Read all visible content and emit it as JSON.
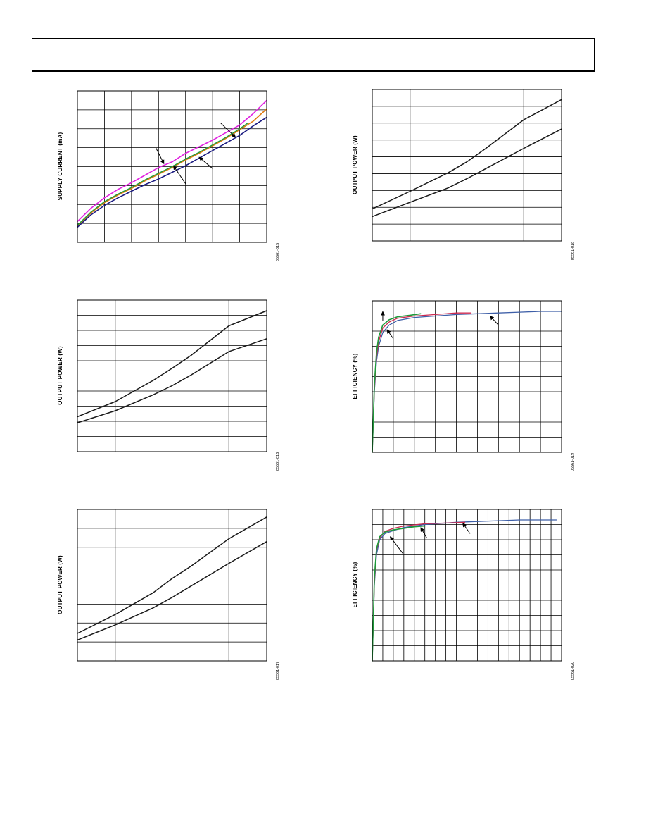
{
  "page": {
    "header": ""
  },
  "charts": [
    {
      "id": "supply-current",
      "type": "line",
      "ylabel": "SUPPLY CURRENT (mA)",
      "fig_id": "05561-015",
      "xlim": [
        0,
        7
      ],
      "ylim": [
        0,
        8
      ],
      "x_gridlines": 7,
      "y_gridlines": 8,
      "grid": true,
      "annotations": [
        {
          "from": [
            5.3,
            6.3
          ],
          "to": [
            5.85,
            5.55
          ]
        },
        {
          "from": [
            2.9,
            5.0
          ],
          "to": [
            3.2,
            4.15
          ]
        },
        {
          "from": [
            4.0,
            3.1
          ],
          "to": [
            3.55,
            4.05
          ]
        },
        {
          "from": [
            5.0,
            3.9
          ],
          "to": [
            4.5,
            4.5
          ]
        }
      ],
      "series": [
        {
          "name": "",
          "color": "#e020e0",
          "width": 1.6,
          "x": [
            0,
            0.5,
            1,
            1.5,
            2,
            2.5,
            3,
            3.5,
            4,
            4.5,
            5,
            5.5,
            6,
            6.5,
            7
          ],
          "y": [
            1.1,
            1.8,
            2.35,
            2.8,
            3.15,
            3.55,
            3.95,
            4.25,
            4.7,
            5.05,
            5.4,
            5.8,
            6.2,
            6.8,
            7.5
          ]
        },
        {
          "name": "",
          "color": "#e07a10",
          "width": 1.6,
          "x": [
            0,
            0.5,
            1,
            1.5,
            2,
            2.5,
            3,
            3.5,
            4,
            4.5,
            5,
            5.5,
            6,
            6.5,
            7
          ],
          "y": [
            0.85,
            1.55,
            2.1,
            2.5,
            2.85,
            3.25,
            3.6,
            3.95,
            4.35,
            4.7,
            5.1,
            5.5,
            5.95,
            6.4,
            7.05
          ]
        },
        {
          "name": "",
          "color": "#1e9a3a",
          "width": 1.4,
          "x": [
            0,
            0.5,
            1,
            1.5,
            2,
            2.5,
            3,
            3.5,
            4,
            4.5,
            5,
            5.5,
            6,
            6.3
          ],
          "y": [
            0.9,
            1.6,
            2.15,
            2.55,
            2.9,
            3.3,
            3.65,
            4.0,
            4.4,
            4.75,
            5.15,
            5.55,
            6.0,
            6.3
          ]
        },
        {
          "name": "",
          "color": "#1a1a80",
          "width": 1.6,
          "x": [
            0,
            0.5,
            1,
            1.5,
            2,
            2.5,
            3,
            3.5,
            4,
            4.5,
            5,
            5.5,
            6,
            6.5,
            7
          ],
          "y": [
            0.8,
            1.45,
            1.95,
            2.35,
            2.7,
            3.05,
            3.35,
            3.7,
            4.05,
            4.45,
            4.85,
            5.25,
            5.65,
            6.15,
            6.6
          ]
        }
      ]
    },
    {
      "id": "output-power-1",
      "type": "line",
      "ylabel": "OUTPUT POWER (W)",
      "fig_id": "05561-018",
      "xlim": [
        0,
        5
      ],
      "ylim": [
        0,
        9
      ],
      "x_gridlines": 5,
      "y_gridlines": 9,
      "grid": true,
      "annotations": [],
      "series": [
        {
          "name": "",
          "color": "#1a1a1a",
          "width": 1.5,
          "x": [
            0,
            1,
            2,
            2.5,
            3,
            4,
            5
          ],
          "y": [
            1.9,
            2.95,
            4.05,
            4.7,
            5.5,
            7.2,
            8.4
          ]
        },
        {
          "name": "",
          "color": "#1a1a1a",
          "width": 1.5,
          "x": [
            0,
            1,
            2,
            2.5,
            3,
            4,
            5
          ],
          "y": [
            1.45,
            2.3,
            3.15,
            3.7,
            4.3,
            5.5,
            6.65
          ]
        }
      ]
    },
    {
      "id": "output-power-2",
      "type": "line",
      "ylabel": "OUTPUT POWER (W)",
      "fig_id": "05561-016",
      "xlim": [
        0,
        5
      ],
      "ylim": [
        0,
        10
      ],
      "x_gridlines": 5,
      "y_gridlines": 10,
      "grid": true,
      "annotations": [],
      "series": [
        {
          "name": "",
          "color": "#1a1a1a",
          "width": 1.5,
          "x": [
            0,
            1,
            2,
            2.5,
            3,
            4,
            5
          ],
          "y": [
            2.3,
            3.3,
            4.7,
            5.5,
            6.35,
            8.3,
            9.3
          ]
        },
        {
          "name": "",
          "color": "#1a1a1a",
          "width": 1.5,
          "x": [
            0,
            1,
            2,
            2.5,
            3,
            4,
            5
          ],
          "y": [
            1.9,
            2.7,
            3.75,
            4.35,
            5.05,
            6.6,
            7.45
          ]
        }
      ]
    },
    {
      "id": "efficiency-1",
      "type": "line",
      "ylabel": "EFFICIENCY (%)",
      "fig_id": "05561-019",
      "xlim": [
        0,
        9
      ],
      "ylim": [
        0,
        100
      ],
      "x_gridlines": 9,
      "y_gridlines": 10,
      "grid": true,
      "annotations": [
        {
          "from": [
            0.5,
            87
          ],
          "to": [
            0.5,
            93
          ]
        },
        {
          "from": [
            1.0,
            75
          ],
          "to": [
            0.7,
            81
          ]
        },
        {
          "from": [
            6.0,
            84
          ],
          "to": [
            5.6,
            90
          ]
        }
      ],
      "series": [
        {
          "name": "",
          "color": "#3e5fa8",
          "width": 1.3,
          "x": [
            0,
            0.1,
            0.2,
            0.3,
            0.5,
            0.8,
            1.2,
            2,
            3,
            4,
            5,
            6,
            7,
            8,
            9
          ],
          "y": [
            0,
            40,
            60,
            70,
            79,
            84,
            87,
            89,
            90,
            91,
            91.5,
            92,
            92.5,
            93,
            93
          ]
        },
        {
          "name": "",
          "color": "#cc2a50",
          "width": 1.3,
          "x": [
            0,
            0.1,
            0.2,
            0.3,
            0.5,
            0.8,
            1.2,
            2,
            3,
            4,
            4.7
          ],
          "y": [
            0,
            42,
            63,
            73,
            82,
            86,
            88.5,
            90,
            91,
            92,
            92
          ]
        },
        {
          "name": "",
          "color": "#1e9a3a",
          "width": 1.6,
          "x": [
            0,
            0.1,
            0.2,
            0.3,
            0.5,
            0.8,
            1.2,
            1.8,
            2.3
          ],
          "y": [
            0,
            45,
            66,
            76,
            84,
            87.5,
            89.5,
            90.5,
            91.5
          ]
        }
      ]
    },
    {
      "id": "output-power-3",
      "type": "line",
      "ylabel": "OUTPUT POWER (W)",
      "fig_id": "05561-017",
      "xlim": [
        0,
        5
      ],
      "ylim": [
        0,
        8
      ],
      "x_gridlines": 5,
      "y_gridlines": 8,
      "grid": true,
      "annotations": [],
      "series": [
        {
          "name": "",
          "color": "#1a1a1a",
          "width": 1.5,
          "x": [
            0,
            1,
            2,
            2.5,
            3,
            4,
            5
          ],
          "y": [
            1.45,
            2.45,
            3.6,
            4.35,
            5.0,
            6.45,
            7.6
          ]
        },
        {
          "name": "",
          "color": "#1a1a1a",
          "width": 1.5,
          "x": [
            0,
            1,
            2,
            2.5,
            3,
            4,
            5
          ],
          "y": [
            1.1,
            1.9,
            2.8,
            3.35,
            3.95,
            5.15,
            6.3
          ]
        }
      ]
    },
    {
      "id": "efficiency-2",
      "type": "line",
      "ylabel": "EFFICIENCY (%)",
      "fig_id": "05561-020",
      "xlim": [
        0,
        18
      ],
      "ylim": [
        0,
        100
      ],
      "x_gridlines": 18,
      "y_gridlines": 10,
      "grid": true,
      "annotations": [
        {
          "from": [
            2.9,
            71
          ],
          "to": [
            1.7,
            82
          ]
        },
        {
          "from": [
            5.2,
            81
          ],
          "to": [
            4.6,
            88
          ]
        },
        {
          "from": [
            9.3,
            84
          ],
          "to": [
            8.6,
            91
          ]
        }
      ],
      "series": [
        {
          "name": "",
          "color": "#3e5fa8",
          "width": 1.3,
          "x": [
            0,
            0.2,
            0.4,
            0.7,
            1.2,
            2,
            3,
            5,
            8,
            10,
            12,
            14,
            16,
            17.5
          ],
          "y": [
            0,
            50,
            70,
            80,
            84,
            86,
            88,
            90,
            91.5,
            92,
            92.5,
            93,
            93,
            93
          ]
        },
        {
          "name": "",
          "color": "#cc2a50",
          "width": 1.3,
          "x": [
            0,
            0.2,
            0.4,
            0.7,
            1.2,
            2,
            3,
            5,
            7,
            8.8
          ],
          "y": [
            0,
            52,
            73,
            81,
            85.5,
            87.5,
            89,
            90.5,
            91,
            91.5
          ]
        },
        {
          "name": "",
          "color": "#1e9a3a",
          "width": 1.6,
          "x": [
            0,
            0.2,
            0.4,
            0.7,
            1.2,
            2,
            3,
            4,
            5
          ],
          "y": [
            0,
            55,
            74,
            82,
            85,
            86.5,
            87.5,
            88.5,
            89
          ]
        }
      ]
    }
  ]
}
